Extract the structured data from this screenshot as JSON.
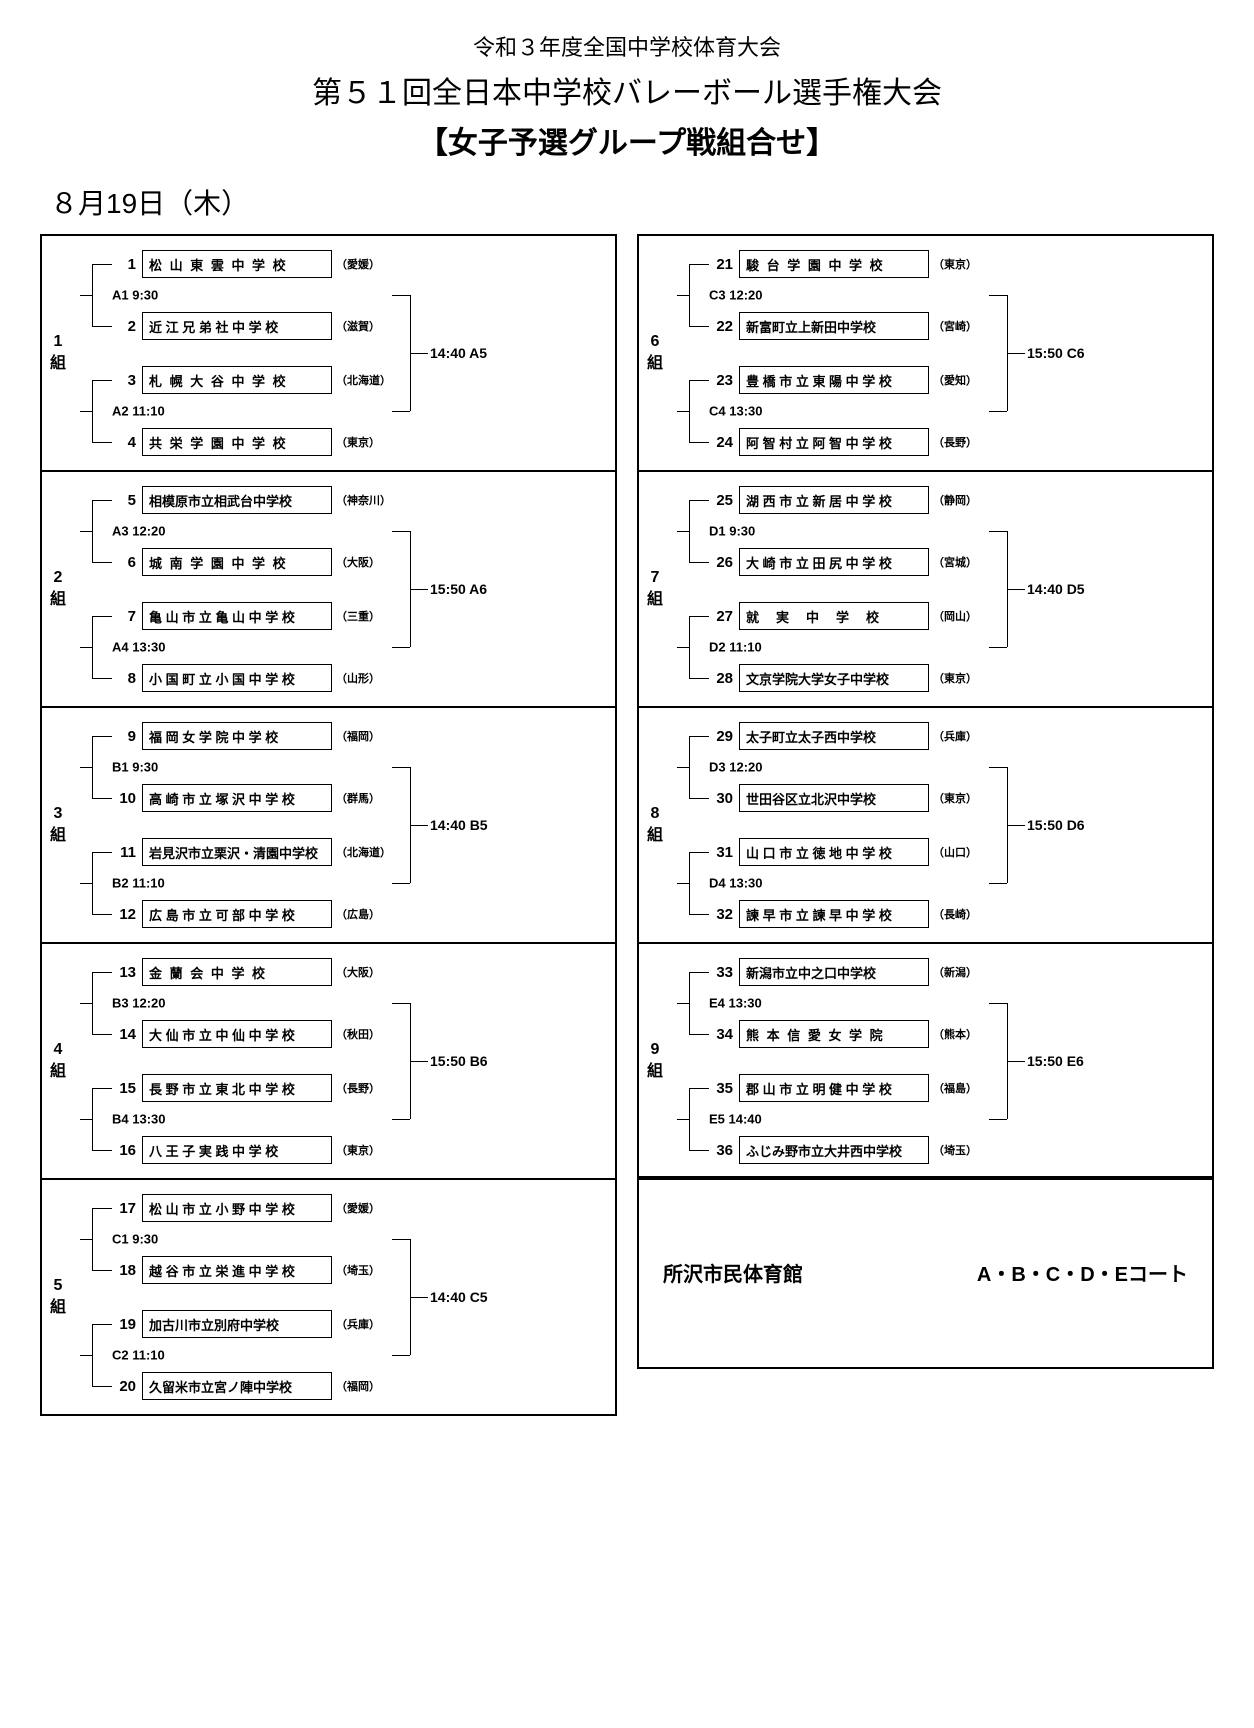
{
  "header": {
    "line1": "令和３年度全国中学校体育大会",
    "line2": "第５１回全日本中学校バレーボール選手権大会",
    "line3": "【女子予選グループ戦組合せ】"
  },
  "date": "８月19日（木）",
  "groups": [
    {
      "id": "1",
      "label": "1\n組",
      "final": "14:40 A5",
      "pairs": [
        {
          "match": "A1  9:30",
          "teams": [
            {
              "seed": "1",
              "name": "松 山 東 雲 中 学 校",
              "pref": "（愛媛）",
              "sp": true
            },
            {
              "seed": "2",
              "name": "近 江 兄 弟 社 中 学 校",
              "pref": "（滋賀）",
              "sp": false
            }
          ]
        },
        {
          "match": "A2 11:10",
          "teams": [
            {
              "seed": "3",
              "name": "札 幌 大 谷 中 学 校",
              "pref": "（北海道）",
              "sp": true
            },
            {
              "seed": "4",
              "name": "共 栄 学 園 中 学 校",
              "pref": "（東京）",
              "sp": true
            }
          ]
        }
      ]
    },
    {
      "id": "2",
      "label": "2\n組",
      "final": "15:50 A6",
      "pairs": [
        {
          "match": "A3 12:20",
          "teams": [
            {
              "seed": "5",
              "name": "相模原市立相武台中学校",
              "pref": "（神奈川）",
              "sp": false
            },
            {
              "seed": "6",
              "name": "城 南 学 園 中 学 校",
              "pref": "（大阪）",
              "sp": true
            }
          ]
        },
        {
          "match": "A4 13:30",
          "teams": [
            {
              "seed": "7",
              "name": "亀 山 市 立 亀 山 中 学 校",
              "pref": "（三重）",
              "sp": false
            },
            {
              "seed": "8",
              "name": "小 国 町 立 小 国 中 学 校",
              "pref": "（山形）",
              "sp": false
            }
          ]
        }
      ]
    },
    {
      "id": "3",
      "label": "3\n組",
      "final": "14:40 B5",
      "pairs": [
        {
          "match": "B1  9:30",
          "teams": [
            {
              "seed": "9",
              "name": "福 岡 女 学 院 中 学 校",
              "pref": "（福岡）",
              "sp": false
            },
            {
              "seed": "10",
              "name": "高 崎 市 立 塚 沢 中 学 校",
              "pref": "（群馬）",
              "sp": false
            }
          ]
        },
        {
          "match": "B2 11:10",
          "teams": [
            {
              "seed": "11",
              "name": "岩見沢市立栗沢・清園中学校",
              "pref": "（北海道）",
              "sp": false
            },
            {
              "seed": "12",
              "name": "広 島 市 立 可 部 中 学 校",
              "pref": "（広島）",
              "sp": false
            }
          ]
        }
      ]
    },
    {
      "id": "4",
      "label": "4\n組",
      "final": "15:50 B6",
      "pairs": [
        {
          "match": "B3 12:20",
          "teams": [
            {
              "seed": "13",
              "name": "金 蘭 会 中 学 校",
              "pref": "（大阪）",
              "sp": true
            },
            {
              "seed": "14",
              "name": "大 仙 市 立 中 仙 中 学 校",
              "pref": "（秋田）",
              "sp": false
            }
          ]
        },
        {
          "match": "B4 13:30",
          "teams": [
            {
              "seed": "15",
              "name": "長 野 市 立 東 北 中 学 校",
              "pref": "（長野）",
              "sp": false
            },
            {
              "seed": "16",
              "name": "八 王 子 実 践 中 学 校",
              "pref": "（東京）",
              "sp": false
            }
          ]
        }
      ]
    },
    {
      "id": "5",
      "label": "5\n組",
      "final": "14:40 C5",
      "pairs": [
        {
          "match": "C1  9:30",
          "teams": [
            {
              "seed": "17",
              "name": "松 山 市 立 小 野 中 学 校",
              "pref": "（愛媛）",
              "sp": false
            },
            {
              "seed": "18",
              "name": "越 谷 市 立 栄 進 中 学 校",
              "pref": "（埼玉）",
              "sp": false
            }
          ]
        },
        {
          "match": "C2 11:10",
          "teams": [
            {
              "seed": "19",
              "name": "加古川市立別府中学校",
              "pref": "（兵庫）",
              "sp": false
            },
            {
              "seed": "20",
              "name": "久留米市立宮ノ陣中学校",
              "pref": "（福岡）",
              "sp": false
            }
          ]
        }
      ]
    },
    {
      "id": "6",
      "label": "6\n組",
      "final": "15:50 C6",
      "pairs": [
        {
          "match": "C3 12:20",
          "teams": [
            {
              "seed": "21",
              "name": "駿 台 学 園 中 学 校",
              "pref": "（東京）",
              "sp": true
            },
            {
              "seed": "22",
              "name": "新富町立上新田中学校",
              "pref": "（宮崎）",
              "sp": false
            }
          ]
        },
        {
          "match": "C4 13:30",
          "teams": [
            {
              "seed": "23",
              "name": "豊 橋 市 立 東 陽 中 学 校",
              "pref": "（愛知）",
              "sp": false
            },
            {
              "seed": "24",
              "name": "阿 智 村 立 阿 智 中 学 校",
              "pref": "（長野）",
              "sp": false
            }
          ]
        }
      ]
    },
    {
      "id": "7",
      "label": "7\n組",
      "final": "14:40 D5",
      "pairs": [
        {
          "match": "D1  9:30",
          "teams": [
            {
              "seed": "25",
              "name": "湖 西 市 立 新 居 中 学 校",
              "pref": "（静岡）",
              "sp": false
            },
            {
              "seed": "26",
              "name": "大 崎 市 立 田 尻 中 学 校",
              "pref": "（宮城）",
              "sp": false
            }
          ]
        },
        {
          "match": "D2 11:10",
          "teams": [
            {
              "seed": "27",
              "name": "就　実　中　学　校",
              "pref": "（岡山）",
              "sp": true
            },
            {
              "seed": "28",
              "name": "文京学院大学女子中学校",
              "pref": "（東京）",
              "sp": false
            }
          ]
        }
      ]
    },
    {
      "id": "8",
      "label": "8\n組",
      "final": "15:50 D6",
      "pairs": [
        {
          "match": "D3 12:20",
          "teams": [
            {
              "seed": "29",
              "name": "太子町立太子西中学校",
              "pref": "（兵庫）",
              "sp": false
            },
            {
              "seed": "30",
              "name": "世田谷区立北沢中学校",
              "pref": "（東京）",
              "sp": false
            }
          ]
        },
        {
          "match": "D4 13:30",
          "teams": [
            {
              "seed": "31",
              "name": "山 口 市 立 徳 地 中 学 校",
              "pref": "（山口）",
              "sp": false
            },
            {
              "seed": "32",
              "name": "諫 早 市 立 諫 早 中 学 校",
              "pref": "（長崎）",
              "sp": false
            }
          ]
        }
      ]
    },
    {
      "id": "9",
      "label": "9\n組",
      "final": "15:50 E6",
      "pairs": [
        {
          "match": "E4 13:30",
          "teams": [
            {
              "seed": "33",
              "name": "新潟市立中之口中学校",
              "pref": "（新潟）",
              "sp": false
            },
            {
              "seed": "34",
              "name": "熊 本 信 愛 女 学 院",
              "pref": "（熊本）",
              "sp": true
            }
          ]
        },
        {
          "match": "E5 14:40",
          "teams": [
            {
              "seed": "35",
              "name": "郡 山 市 立 明 健 中 学 校",
              "pref": "（福島）",
              "sp": false
            },
            {
              "seed": "36",
              "name": "ふじみ野市立大井西中学校",
              "pref": "（埼玉）",
              "sp": false
            }
          ]
        }
      ]
    }
  ],
  "venue": {
    "name": "所沢市民体育館",
    "courts": "A・B・C・D・Eコート"
  },
  "layout": {
    "leftGroups": [
      "1",
      "2",
      "3",
      "4",
      "5"
    ],
    "rightGroups": [
      "6",
      "7",
      "8",
      "9"
    ]
  },
  "colors": {
    "background": "#ffffff",
    "text": "#000000",
    "border": "#000000"
  }
}
